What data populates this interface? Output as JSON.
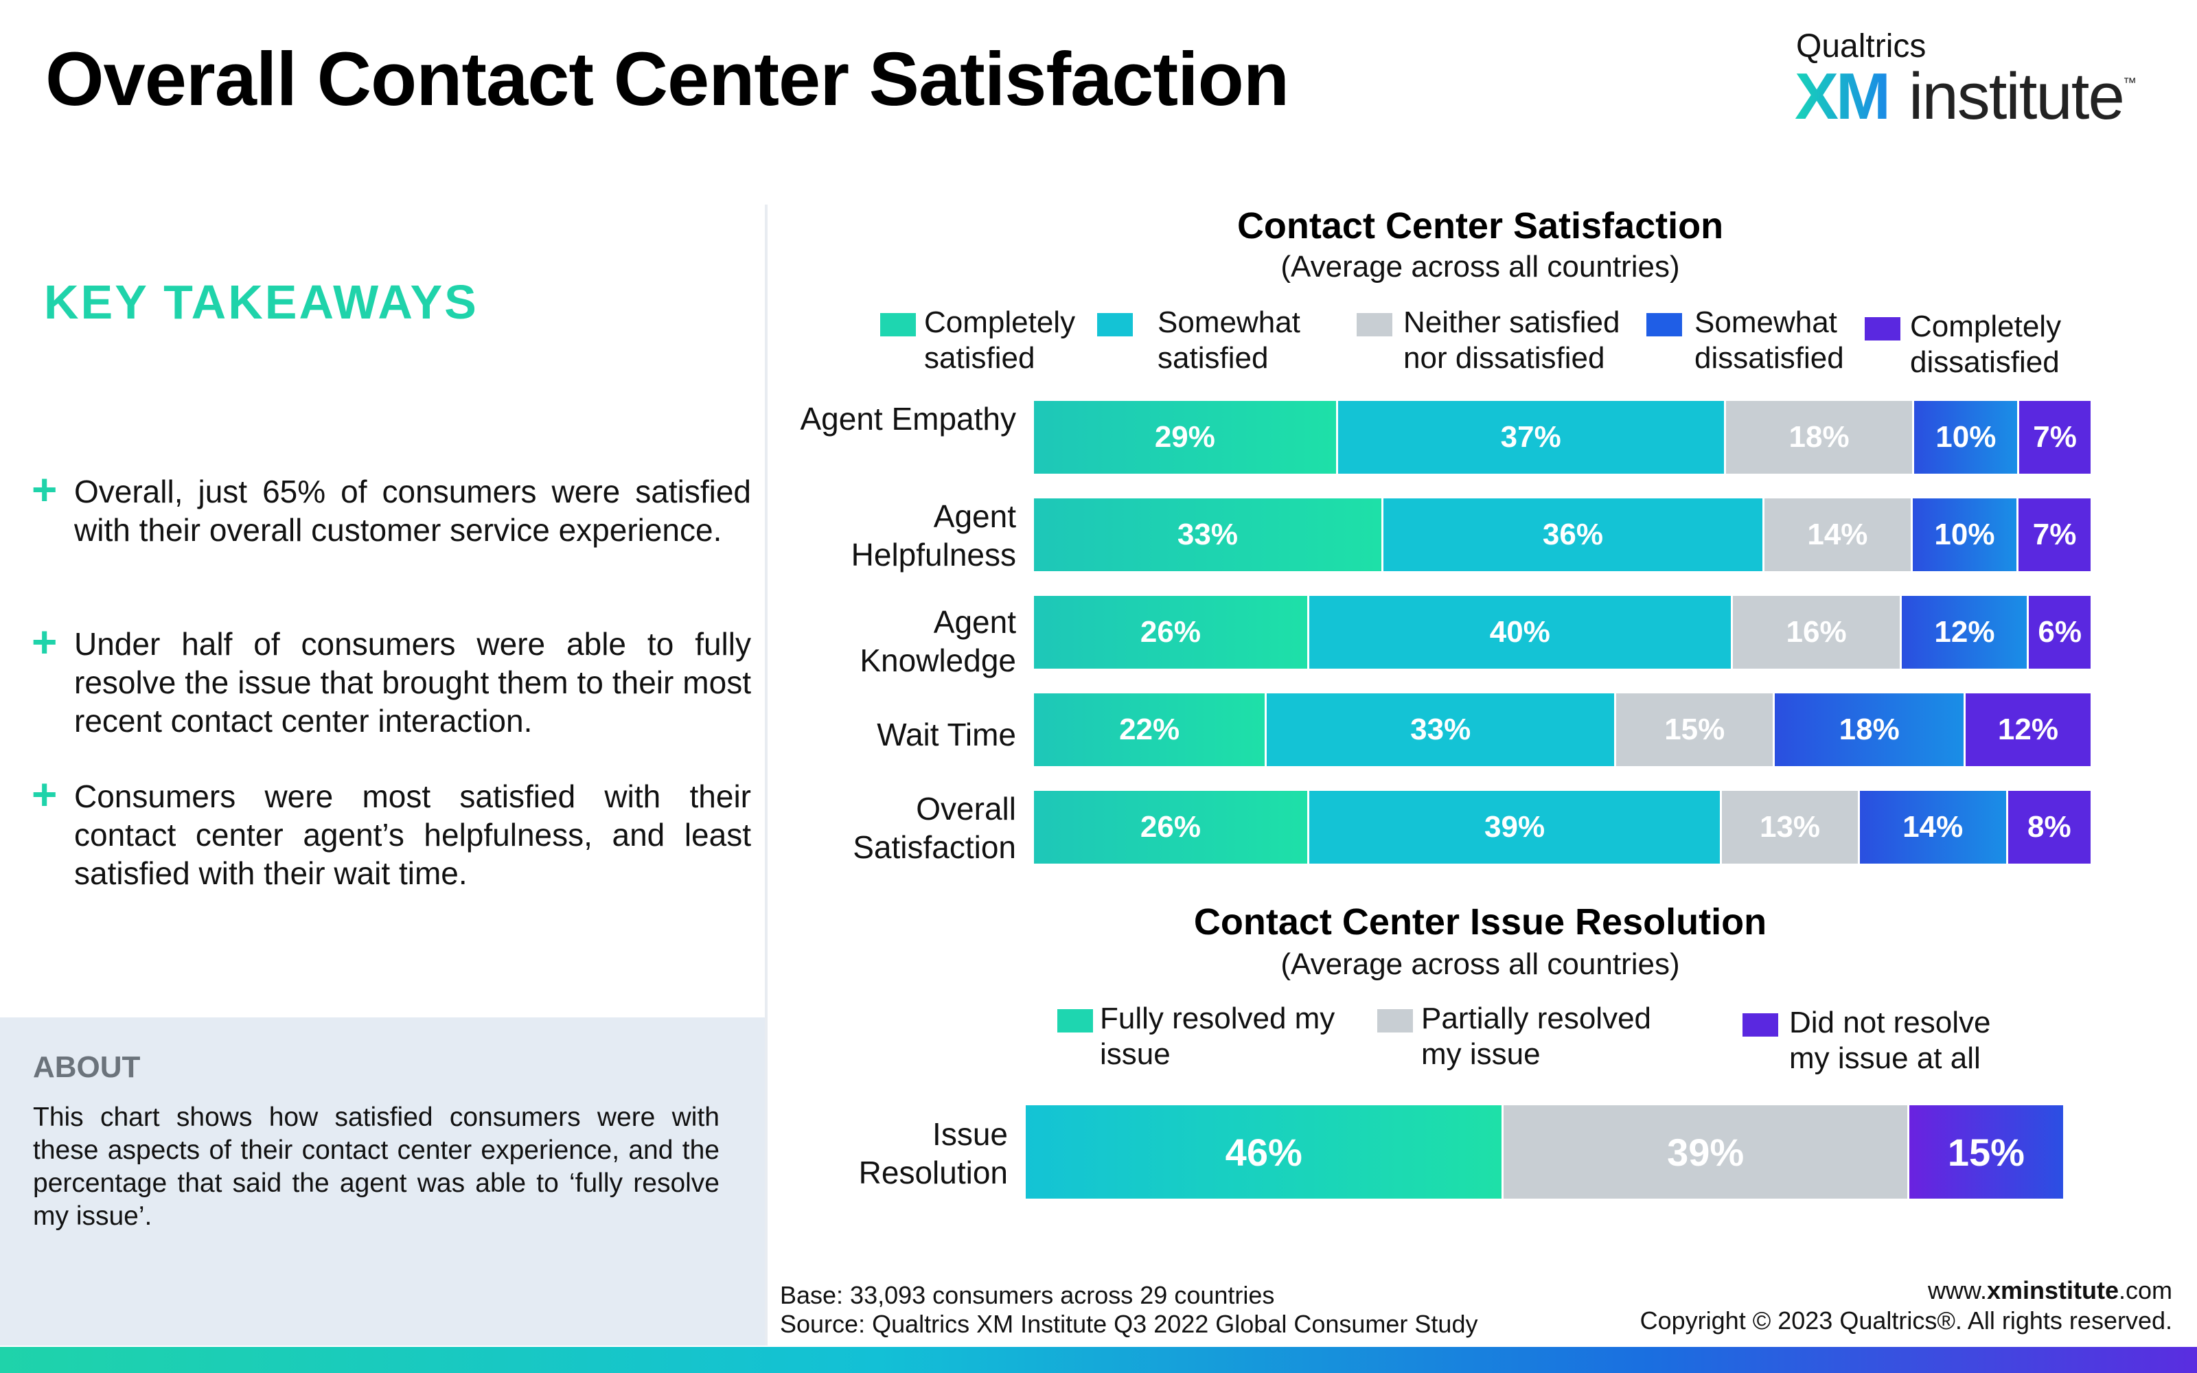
{
  "page_title": "Overall Contact Center Satisfaction",
  "logo": {
    "top": "Qualtrics",
    "xm": "XM",
    "institute": "institute",
    "tm": "™"
  },
  "takeaways": {
    "title": "KEY TAKEAWAYS",
    "bullet_icon": "plus-icon",
    "items": [
      "Overall, just 65% of consumers were satisfied with their overall customer service experience.",
      "Under half of consumers were able to fully resolve the issue that brought them to their most recent contact center interaction.",
      "Consumers were most satisfied with their contact center agent’s helpfulness, and least satisfied with their wait time."
    ]
  },
  "about": {
    "title": "ABOUT",
    "text": "This chart shows how satisfied consumers were with these aspects of their contact center experience, and the percentage that said the agent was able to ‘fully resolve my issue’."
  },
  "footer": {
    "base": "Base: 33,093 consumers across 29 countries",
    "source": "Source: Qualtrics XM Institute Q3 2022 Global Consumer Study",
    "url_prefix": "www.",
    "url_bold": "xminstitute",
    "url_suffix": ".com",
    "copyright": "Copyright © 2023 Qualtrics®. All rights reserved."
  },
  "colors": {
    "completely_satisfied": "#1ed6b0",
    "somewhat_satisfied": "#14c3d5",
    "neutral": "#c8ced3",
    "somewhat_dissatisfied": "#1f5ee6",
    "completely_dissatisfied": "#5a28e0"
  },
  "chart_data": [
    {
      "type": "bar",
      "orientation": "horizontal",
      "stacked": true,
      "title": "Contact Center Satisfaction",
      "subtitle": "(Average across all countries)",
      "legend_position": "top",
      "categories": [
        "Agent Empathy",
        "Agent Helpfulness",
        "Agent Knowledge",
        "Wait Time",
        "Overall Satisfaction"
      ],
      "series": [
        {
          "name": "Completely satisfied",
          "values": [
            29,
            33,
            26,
            22,
            26
          ],
          "color": "#1ed6b0"
        },
        {
          "name": "Somewhat satisfied",
          "values": [
            37,
            36,
            40,
            33,
            39
          ],
          "color": "#14c3d5"
        },
        {
          "name": "Neither satisfied nor dissatisfied",
          "values": [
            18,
            14,
            16,
            15,
            13
          ],
          "color": "#c8ced3"
        },
        {
          "name": "Somewhat dissatisfied",
          "values": [
            10,
            10,
            12,
            18,
            14
          ],
          "color": "#1f5ee6"
        },
        {
          "name": "Completely dissatisfied",
          "values": [
            7,
            7,
            6,
            12,
            8
          ],
          "color": "#5a28e0"
        }
      ],
      "value_suffix": "%"
    },
    {
      "type": "bar",
      "orientation": "horizontal",
      "stacked": true,
      "title": "Contact Center Issue Resolution",
      "subtitle": "(Average across all countries)",
      "legend_position": "top",
      "categories": [
        "Issue Resolution"
      ],
      "series": [
        {
          "name": "Fully resolved my issue",
          "values": [
            46
          ],
          "color": "#18cfc4"
        },
        {
          "name": "Partially resolved my issue",
          "values": [
            39
          ],
          "color": "#c8ced3"
        },
        {
          "name": "Did not resolve my issue at all",
          "values": [
            15
          ],
          "color": "#5a28e0"
        }
      ],
      "value_suffix": "%"
    }
  ]
}
